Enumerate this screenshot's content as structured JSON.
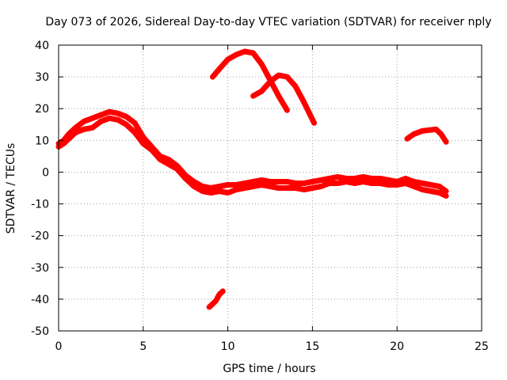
{
  "chart_data": {
    "type": "line",
    "title": "Day 073 of 2026, Sidereal Day-to-day VTEC variation (SDTVAR) for receiver nply",
    "xlabel": "GPS time / hours",
    "ylabel": "SDTVAR / TECUs",
    "xlim": [
      0,
      25
    ],
    "ylim": [
      -50,
      40
    ],
    "xticks": [
      0,
      5,
      10,
      15,
      20,
      25
    ],
    "xtick_labels": [
      "0",
      "5",
      "10",
      "15",
      "20",
      "25"
    ],
    "yticks": [
      -50,
      -40,
      -30,
      -20,
      -10,
      0,
      10,
      20,
      30,
      40
    ],
    "ytick_labels": [
      "-50",
      "-40",
      "-30",
      "-20",
      "-10",
      "0",
      "10",
      "20",
      "30",
      "40"
    ],
    "grid": true,
    "legend": "none",
    "color": "#ff0000",
    "series": [
      {
        "name": "band-upper",
        "points": [
          [
            0,
            9
          ],
          [
            0.3,
            10
          ],
          [
            0.6,
            12
          ],
          [
            1,
            14
          ],
          [
            1.5,
            16
          ],
          [
            2,
            17
          ],
          [
            2.5,
            18
          ],
          [
            3,
            19
          ],
          [
            3.5,
            18.5
          ],
          [
            4,
            17.5
          ],
          [
            4.5,
            15.5
          ],
          [
            5,
            11
          ],
          [
            5.5,
            8
          ],
          [
            6,
            5
          ],
          [
            6.5,
            4
          ],
          [
            7,
            2
          ],
          [
            7.5,
            -1
          ],
          [
            8,
            -3
          ],
          [
            8.5,
            -4.5
          ],
          [
            9,
            -5
          ],
          [
            9.5,
            -4.5
          ],
          [
            10,
            -4
          ],
          [
            10.5,
            -4
          ],
          [
            11,
            -3.5
          ],
          [
            11.5,
            -3
          ],
          [
            12,
            -2.5
          ],
          [
            12.5,
            -3
          ],
          [
            13,
            -3
          ],
          [
            13.5,
            -3
          ],
          [
            14,
            -3.5
          ],
          [
            14.5,
            -3.5
          ],
          [
            15,
            -3
          ],
          [
            15.5,
            -2.5
          ],
          [
            16,
            -2
          ],
          [
            16.5,
            -1.5
          ],
          [
            17,
            -2
          ],
          [
            17.5,
            -2
          ],
          [
            18,
            -1.5
          ],
          [
            18.5,
            -2
          ],
          [
            19,
            -2
          ],
          [
            19.5,
            -2.5
          ],
          [
            20,
            -3
          ],
          [
            20.5,
            -2
          ],
          [
            21,
            -3
          ],
          [
            21.5,
            -3.5
          ],
          [
            22,
            -4
          ],
          [
            22.5,
            -4.5
          ],
          [
            22.9,
            -6
          ]
        ]
      },
      {
        "name": "band-lower",
        "points": [
          [
            0,
            8
          ],
          [
            0.3,
            9
          ],
          [
            0.6,
            10.5
          ],
          [
            1,
            12.5
          ],
          [
            1.5,
            13.5
          ],
          [
            2,
            14
          ],
          [
            2.5,
            16
          ],
          [
            3,
            17
          ],
          [
            3.5,
            16.5
          ],
          [
            4,
            15
          ],
          [
            4.5,
            12.5
          ],
          [
            5,
            9
          ],
          [
            5.5,
            7
          ],
          [
            6,
            4
          ],
          [
            6.5,
            2.5
          ],
          [
            7,
            1
          ],
          [
            7.5,
            -2
          ],
          [
            8,
            -4.5
          ],
          [
            8.5,
            -6
          ],
          [
            9,
            -6.5
          ],
          [
            9.5,
            -6
          ],
          [
            10,
            -6.5
          ],
          [
            10.5,
            -5.5
          ],
          [
            11,
            -5
          ],
          [
            11.5,
            -4.5
          ],
          [
            12,
            -4
          ],
          [
            12.5,
            -4.5
          ],
          [
            13,
            -5
          ],
          [
            13.5,
            -5
          ],
          [
            14,
            -5
          ],
          [
            14.5,
            -5.5
          ],
          [
            15,
            -5
          ],
          [
            15.5,
            -4.5
          ],
          [
            16,
            -3.5
          ],
          [
            16.5,
            -3.5
          ],
          [
            17,
            -3
          ],
          [
            17.5,
            -3.5
          ],
          [
            18,
            -3
          ],
          [
            18.5,
            -3.5
          ],
          [
            19,
            -3.5
          ],
          [
            19.5,
            -4
          ],
          [
            20,
            -4
          ],
          [
            20.5,
            -3.5
          ],
          [
            21,
            -4.5
          ],
          [
            21.5,
            -5.5
          ],
          [
            22,
            -6
          ],
          [
            22.5,
            -6.5
          ],
          [
            22.9,
            -7.5
          ]
        ]
      },
      {
        "name": "arc-1",
        "points": [
          [
            9.1,
            30
          ],
          [
            9.5,
            32.5
          ],
          [
            10,
            35.5
          ],
          [
            10.5,
            37
          ],
          [
            11,
            38
          ],
          [
            11.5,
            37.5
          ],
          [
            12,
            34
          ],
          [
            12.5,
            29
          ],
          [
            13,
            24
          ],
          [
            13.5,
            19.5
          ]
        ]
      },
      {
        "name": "arc-2",
        "points": [
          [
            11.5,
            24
          ],
          [
            12,
            25.5
          ],
          [
            12.5,
            28.5
          ],
          [
            13,
            30.5
          ],
          [
            13.5,
            30
          ],
          [
            14,
            27
          ],
          [
            14.5,
            22
          ],
          [
            15.1,
            15.5
          ]
        ]
      },
      {
        "name": "arc-3",
        "points": [
          [
            20.6,
            10.5
          ],
          [
            21,
            12
          ],
          [
            21.5,
            13
          ],
          [
            22,
            13.3
          ],
          [
            22.3,
            13.5
          ],
          [
            22.6,
            12
          ],
          [
            22.9,
            9.5
          ]
        ]
      },
      {
        "name": "arc-4",
        "points": [
          [
            8.9,
            -42.5
          ],
          [
            9.1,
            -41.5
          ],
          [
            9.3,
            -40.5
          ],
          [
            9.5,
            -38.5
          ],
          [
            9.7,
            -37.5
          ]
        ]
      }
    ]
  }
}
